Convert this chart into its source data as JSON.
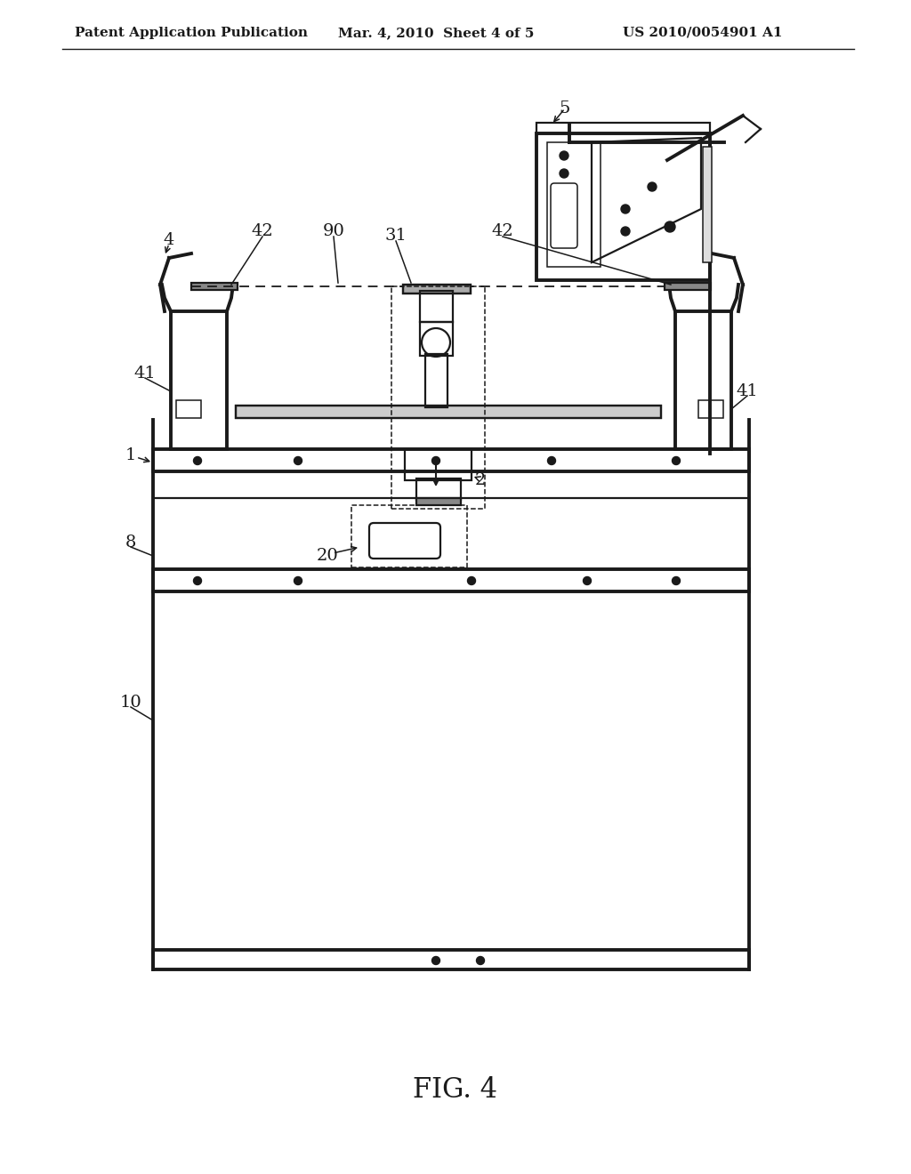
{
  "bg_color": "#ffffff",
  "line_color": "#1a1a1a",
  "header_left": "Patent Application Publication",
  "header_mid": "Mar. 4, 2010  Sheet 4 of 5",
  "header_right": "US 2010/0054901 A1",
  "figure_label": "FIG. 4"
}
